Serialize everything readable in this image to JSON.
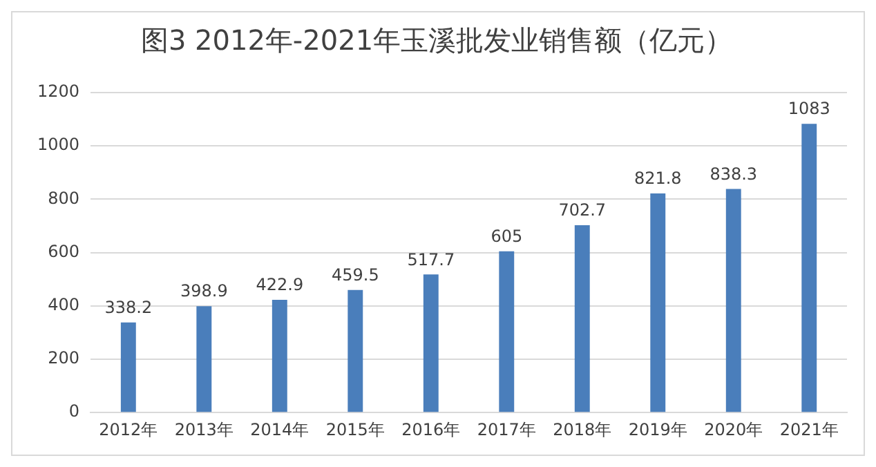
{
  "chart_data": {
    "type": "bar",
    "title": "图3 2012年-2021年玉溪批发业销售额（亿元）",
    "categories": [
      "2012年",
      "2013年",
      "2014年",
      "2015年",
      "2016年",
      "2017年",
      "2018年",
      "2019年",
      "2020年",
      "2021年"
    ],
    "values": [
      338.2,
      398.9,
      422.9,
      459.5,
      517.7,
      605,
      702.7,
      821.8,
      838.3,
      1083
    ],
    "color": "#4a7ebb",
    "ylim": [
      0,
      1200
    ],
    "yticks": [
      0,
      200,
      400,
      600,
      800,
      1000,
      1200
    ],
    "grid": "y",
    "data_labels": true,
    "legend": false
  }
}
